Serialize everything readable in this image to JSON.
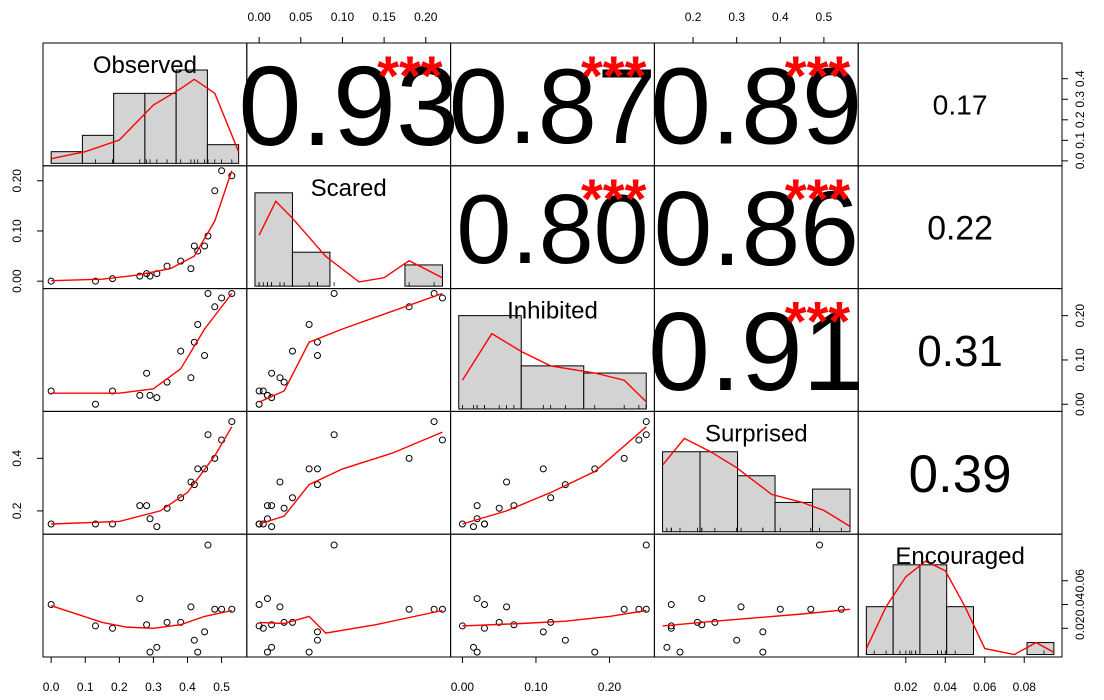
{
  "chart_data": {
    "type": "scatter",
    "variables": [
      "Observed",
      "Scared",
      "Inhibited",
      "Surprised",
      "Encouraged"
    ],
    "ranges": [
      [
        0.0,
        0.55
      ],
      [
        -0.005,
        0.22
      ],
      [
        -0.005,
        0.25
      ],
      [
        0.13,
        0.56
      ],
      [
        0.0,
        0.095
      ]
    ],
    "observations": [
      [
        0.0,
        0.0,
        0.03,
        0.15,
        0.04
      ],
      [
        0.13,
        0.0,
        0.0,
        0.15,
        0.022
      ],
      [
        0.18,
        0.005,
        0.03,
        0.15,
        0.02
      ],
      [
        0.26,
        0.01,
        0.02,
        0.22,
        0.045
      ],
      [
        0.28,
        0.015,
        0.07,
        0.22,
        0.023
      ],
      [
        0.29,
        0.01,
        0.02,
        0.17,
        0.0
      ],
      [
        0.31,
        0.015,
        0.015,
        0.14,
        0.004
      ],
      [
        0.34,
        0.03,
        0.05,
        0.21,
        0.025
      ],
      [
        0.38,
        0.04,
        0.12,
        0.25,
        0.025
      ],
      [
        0.41,
        0.025,
        0.06,
        0.31,
        0.038
      ],
      [
        0.42,
        0.07,
        0.14,
        0.3,
        0.01
      ],
      [
        0.43,
        0.06,
        0.18,
        0.36,
        0.0
      ],
      [
        0.45,
        0.07,
        0.11,
        0.36,
        0.017
      ],
      [
        0.46,
        0.09,
        0.25,
        0.49,
        0.09
      ],
      [
        0.48,
        0.18,
        0.22,
        0.4,
        0.036
      ],
      [
        0.5,
        0.22,
        0.24,
        0.47,
        0.036
      ],
      [
        0.53,
        0.21,
        0.25,
        0.54,
        0.036
      ]
    ],
    "histograms": [
      [
        0.05,
        0.12,
        0.3,
        0.3,
        0.4,
        0.08
      ],
      [
        0.22,
        0.08,
        0.0,
        0.0,
        0.05
      ],
      [
        0.26,
        0.12,
        0.1
      ],
      [
        0.3,
        0.3,
        0.21,
        0.11,
        0.16
      ],
      [
        0.04,
        0.075,
        0.075,
        0.04,
        0.0,
        0.0,
        0.01
      ]
    ],
    "densities": [
      [
        [
          0.0,
          0.02
        ],
        [
          0.1,
          0.05
        ],
        [
          0.2,
          0.1
        ],
        [
          0.3,
          0.25
        ],
        [
          0.38,
          0.32
        ],
        [
          0.42,
          0.36
        ],
        [
          0.48,
          0.3
        ],
        [
          0.55,
          0.05
        ]
      ],
      [
        [
          0.0,
          0.12
        ],
        [
          0.02,
          0.2
        ],
        [
          0.04,
          0.16
        ],
        [
          0.08,
          0.07
        ],
        [
          0.12,
          0.01
        ],
        [
          0.15,
          0.02
        ],
        [
          0.18,
          0.06
        ],
        [
          0.22,
          0.02
        ]
      ],
      [
        [
          0.0,
          0.08
        ],
        [
          0.04,
          0.21
        ],
        [
          0.08,
          0.16
        ],
        [
          0.12,
          0.12
        ],
        [
          0.18,
          0.1
        ],
        [
          0.22,
          0.08
        ],
        [
          0.25,
          0.02
        ]
      ],
      [
        [
          0.13,
          0.25
        ],
        [
          0.18,
          0.35
        ],
        [
          0.24,
          0.3
        ],
        [
          0.3,
          0.24
        ],
        [
          0.38,
          0.14
        ],
        [
          0.45,
          0.11
        ],
        [
          0.5,
          0.08
        ],
        [
          0.56,
          0.02
        ]
      ],
      [
        [
          0.0,
          0.005
        ],
        [
          0.01,
          0.04
        ],
        [
          0.02,
          0.065
        ],
        [
          0.03,
          0.078
        ],
        [
          0.04,
          0.07
        ],
        [
          0.05,
          0.04
        ],
        [
          0.06,
          0.005
        ],
        [
          0.075,
          0.0
        ],
        [
          0.086,
          0.01
        ],
        [
          0.095,
          0.002
        ]
      ]
    ],
    "smooths": {
      "1,0": [
        [
          0.0,
          0.001
        ],
        [
          0.15,
          0.004
        ],
        [
          0.25,
          0.012
        ],
        [
          0.35,
          0.025
        ],
        [
          0.42,
          0.05
        ],
        [
          0.48,
          0.12
        ],
        [
          0.53,
          0.22
        ]
      ],
      "2,0": [
        [
          0.0,
          0.025
        ],
        [
          0.2,
          0.025
        ],
        [
          0.3,
          0.035
        ],
        [
          0.38,
          0.08
        ],
        [
          0.45,
          0.17
        ],
        [
          0.53,
          0.25
        ]
      ],
      "2,1": [
        [
          0.0,
          0.005
        ],
        [
          0.03,
          0.03
        ],
        [
          0.06,
          0.14
        ],
        [
          0.1,
          0.17
        ],
        [
          0.16,
          0.21
        ],
        [
          0.22,
          0.25
        ]
      ],
      "3,0": [
        [
          0.0,
          0.15
        ],
        [
          0.2,
          0.16
        ],
        [
          0.32,
          0.2
        ],
        [
          0.4,
          0.27
        ],
        [
          0.48,
          0.41
        ],
        [
          0.53,
          0.52
        ]
      ],
      "3,1": [
        [
          0.0,
          0.15
        ],
        [
          0.03,
          0.18
        ],
        [
          0.06,
          0.3
        ],
        [
          0.1,
          0.36
        ],
        [
          0.16,
          0.42
        ],
        [
          0.22,
          0.5
        ]
      ],
      "3,2": [
        [
          0.0,
          0.15
        ],
        [
          0.06,
          0.2
        ],
        [
          0.12,
          0.27
        ],
        [
          0.18,
          0.35
        ],
        [
          0.25,
          0.52
        ]
      ],
      "4,0": [
        [
          0.0,
          0.039
        ],
        [
          0.15,
          0.025
        ],
        [
          0.22,
          0.021
        ],
        [
          0.3,
          0.02
        ],
        [
          0.38,
          0.023
        ],
        [
          0.45,
          0.03
        ],
        [
          0.53,
          0.035
        ]
      ],
      "4,1": [
        [
          0.0,
          0.025
        ],
        [
          0.03,
          0.024
        ],
        [
          0.06,
          0.03
        ],
        [
          0.08,
          0.016
        ],
        [
          0.14,
          0.023
        ],
        [
          0.22,
          0.035
        ]
      ],
      "4,2": [
        [
          0.0,
          0.022
        ],
        [
          0.08,
          0.024
        ],
        [
          0.14,
          0.026
        ],
        [
          0.2,
          0.03
        ],
        [
          0.25,
          0.035
        ]
      ],
      "4,3": [
        [
          0.13,
          0.022
        ],
        [
          0.25,
          0.026
        ],
        [
          0.35,
          0.029
        ],
        [
          0.45,
          0.032
        ],
        [
          0.56,
          0.036
        ]
      ]
    },
    "correlations": [
      {
        "row": 0,
        "col": 1,
        "value": "0.93",
        "stars": "***"
      },
      {
        "row": 0,
        "col": 2,
        "value": "0.87",
        "stars": "***"
      },
      {
        "row": 0,
        "col": 3,
        "value": "0.89",
        "stars": "***"
      },
      {
        "row": 0,
        "col": 4,
        "value": "0.17",
        "stars": ""
      },
      {
        "row": 1,
        "col": 2,
        "value": "0.80",
        "stars": "***"
      },
      {
        "row": 1,
        "col": 3,
        "value": "0.86",
        "stars": "***"
      },
      {
        "row": 1,
        "col": 4,
        "value": "0.22",
        "stars": ""
      },
      {
        "row": 2,
        "col": 3,
        "value": "0.91",
        "stars": "***"
      },
      {
        "row": 2,
        "col": 4,
        "value": "0.31",
        "stars": ""
      },
      {
        "row": 3,
        "col": 4,
        "value": "0.39",
        "stars": ""
      }
    ],
    "top_ticks": [
      {
        "col": 1,
        "labels": [
          "0.00",
          "0.05",
          "0.10",
          "0.15",
          "0.20"
        ],
        "values": [
          0.0,
          0.05,
          0.1,
          0.15,
          0.2
        ]
      },
      {
        "col": 3,
        "labels": [
          "0.2",
          "0.3",
          "0.4",
          "0.5"
        ],
        "values": [
          0.2,
          0.3,
          0.4,
          0.5
        ]
      }
    ],
    "bottom_ticks": [
      {
        "col": 0,
        "labels": [
          "0.0",
          "0.1",
          "0.2",
          "0.3",
          "0.4",
          "0.5"
        ],
        "values": [
          0.0,
          0.1,
          0.2,
          0.3,
          0.4,
          0.5
        ]
      },
      {
        "col": 2,
        "labels": [
          "0.00",
          "0.10",
          "0.20"
        ],
        "values": [
          0.0,
          0.1,
          0.2
        ]
      },
      {
        "col": 4,
        "labels": [
          "0.02",
          "0.04",
          "0.06",
          "0.08"
        ],
        "values": [
          0.02,
          0.04,
          0.06,
          0.08
        ]
      }
    ],
    "left_ticks": [
      {
        "row": 1,
        "labels": [
          "0.00",
          "0.10",
          "0.20"
        ],
        "values": [
          0.0,
          0.1,
          0.2
        ]
      },
      {
        "row": 3,
        "labels": [
          "0.2",
          "0.4"
        ],
        "values": [
          0.2,
          0.4
        ]
      }
    ],
    "right_ticks": [
      {
        "row": 0,
        "labels": [
          "0.0",
          "0.1",
          "0.2",
          "0.3",
          "0.4"
        ],
        "values": [
          0.0,
          0.1,
          0.2,
          0.3,
          0.4
        ]
      },
      {
        "row": 2,
        "labels": [
          "0.00",
          "0.10",
          "0.20"
        ],
        "values": [
          0.0,
          0.1,
          0.2
        ]
      },
      {
        "row": 4,
        "labels": [
          "0.02",
          "0.04",
          "0.06"
        ],
        "values": [
          0.02,
          0.04,
          0.06
        ]
      }
    ],
    "colors": {
      "hist_fill": "#d3d3d3",
      "smooth": "#ff0000",
      "stars": "#ff0000",
      "points": "#000000"
    }
  }
}
